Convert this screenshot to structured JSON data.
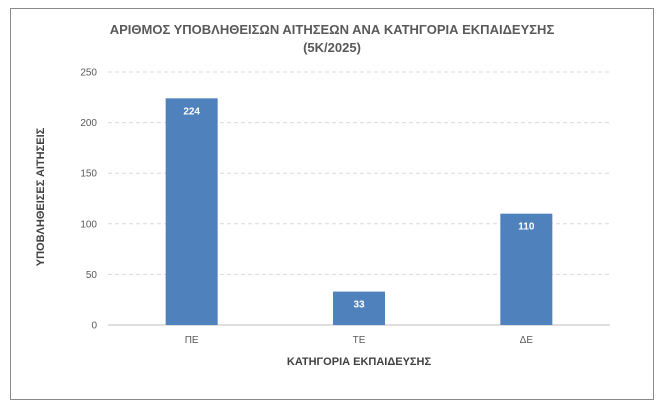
{
  "chart_data": {
    "type": "bar",
    "title_line1": "ΑΡΙΘΜΟΣ ΥΠΟΒΛΗΘΕΙΣΩΝ ΑΙΤΗΣΕΩΝ ΑΝΑ ΚΑΤΗΓΟΡΙΑ ΕΚΠΑΙΔΕΥΣΗΣ",
    "title_line2": "(5Κ/2025)",
    "xlabel": "ΚΑΤΗΓΟΡΙΑ ΕΚΠΑΙΔΕΥΣΗΣ",
    "ylabel": "ΥΠΟΒΛΗΘΕΙΣΕΣ ΑΙΤΗΣΕΙΣ",
    "categories": [
      "ΠΕ",
      "ΤΕ",
      "ΔΕ"
    ],
    "values": [
      224,
      33,
      110
    ],
    "ylim": [
      0,
      250
    ],
    "yticks": [
      0,
      50,
      100,
      150,
      200,
      250
    ],
    "grid": true,
    "bar_color": "#4f81bd",
    "grid_color": "#d9d9d9"
  }
}
